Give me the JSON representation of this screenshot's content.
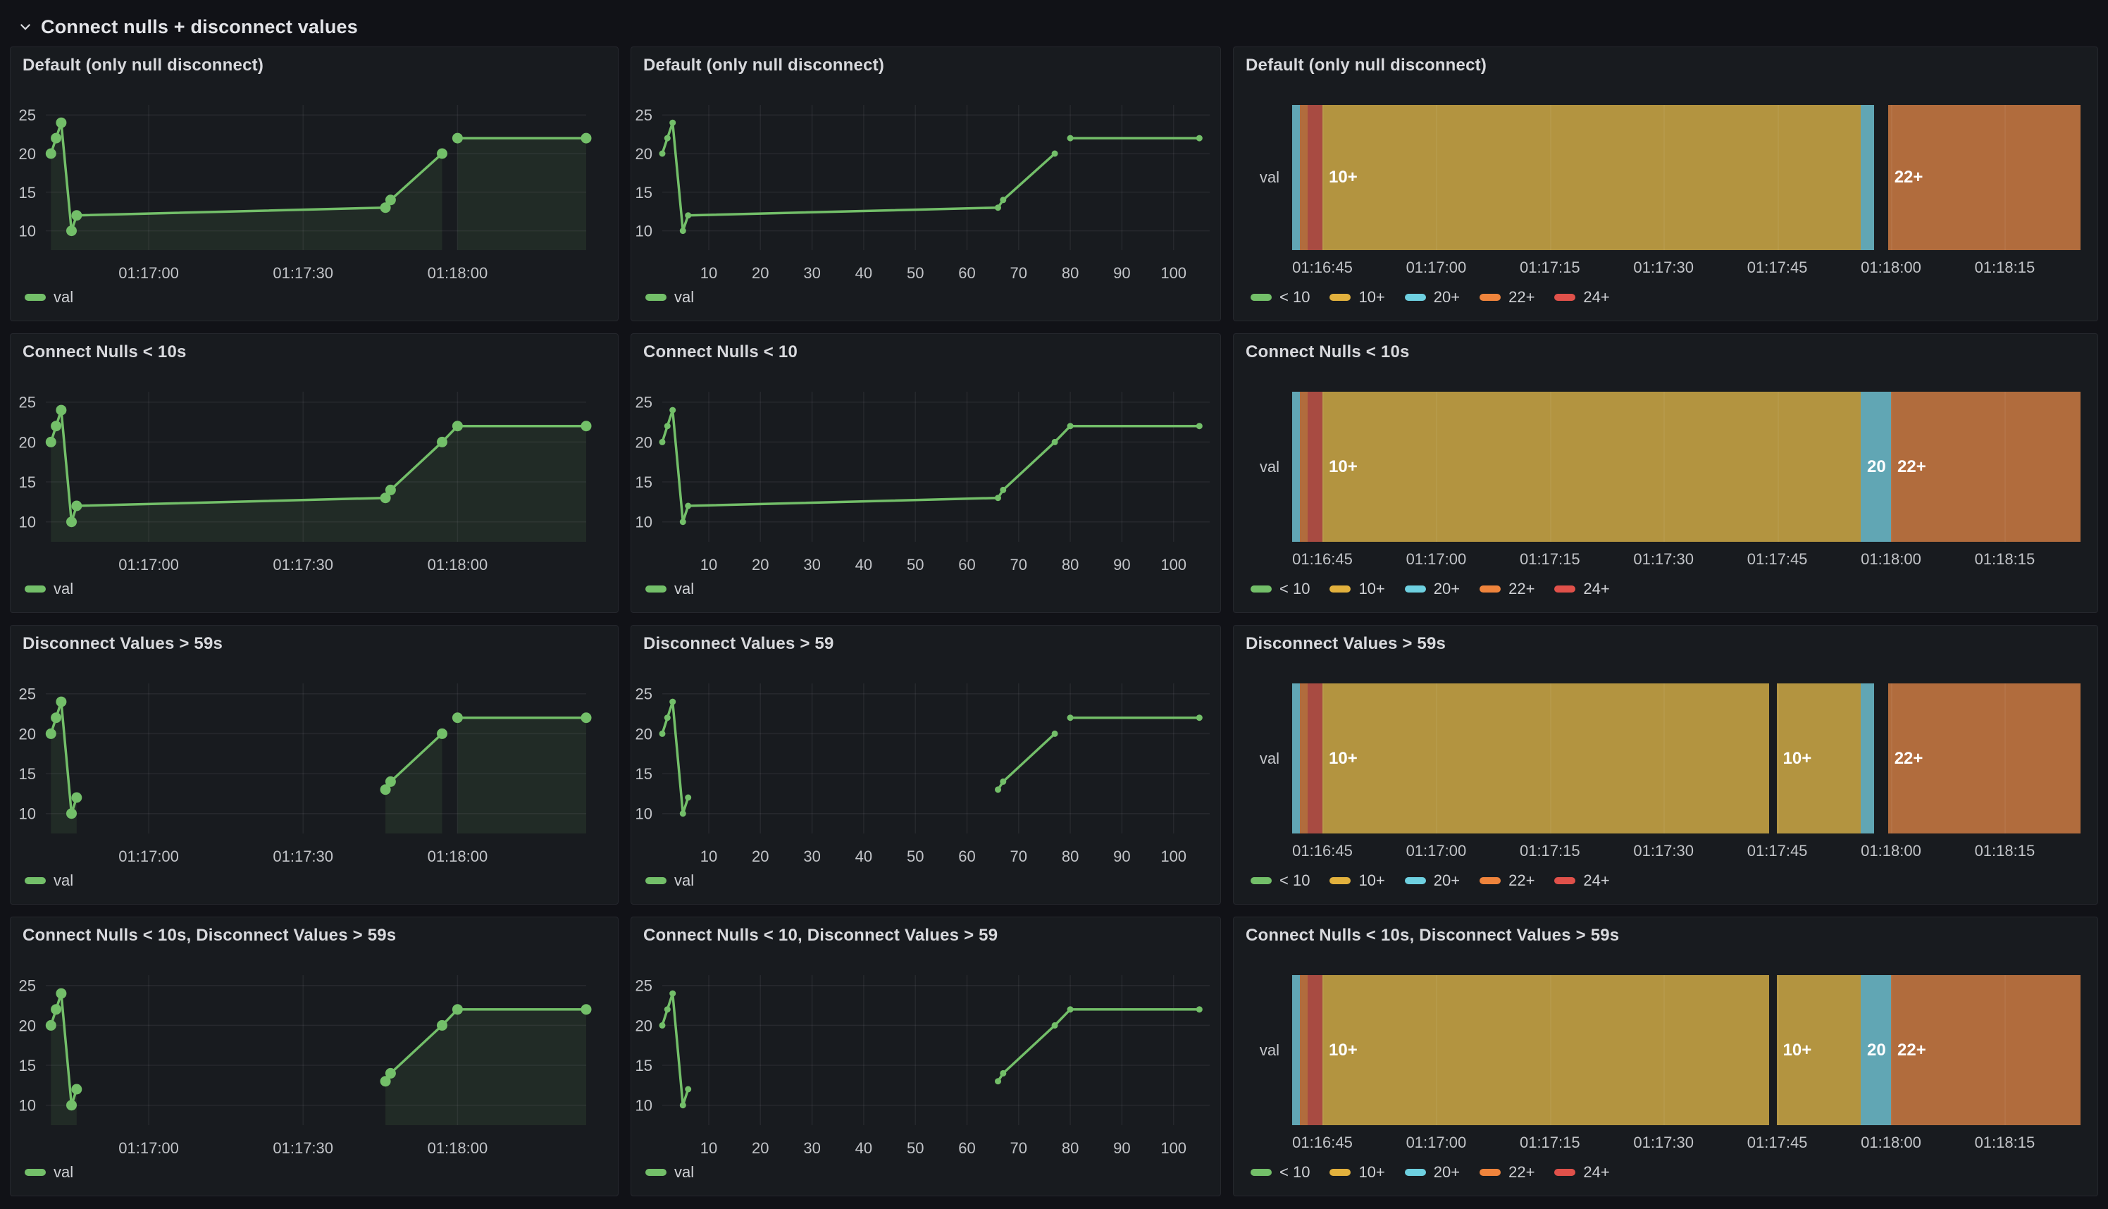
{
  "row_header": {
    "title": "Connect nulls + disconnect values"
  },
  "colors": {
    "page_bg": "#111217",
    "panel_bg": "#181b1f",
    "panel_border": "#25272d",
    "title_text": "#d8d9dd",
    "tick_text": "#c2c4c8",
    "grid_line": "rgba(204,204,220,0.08)",
    "series_line": "#73bf69",
    "series_fill": "rgba(115,191,105,0.10)",
    "value_label": "#ffffff",
    "state_fill": {
      "green": "#6d9c63",
      "yellow": "#b39440",
      "cyan": "#61a6b4",
      "orange": "#b16c3d",
      "red": "#a84b42"
    },
    "state_legend": {
      "green": "#73bf69",
      "yellow": "#e2b13d",
      "cyan": "#6ed0e0",
      "orange": "#ef843c",
      "red": "#e0514a"
    }
  },
  "series": {
    "label": "val"
  },
  "timeline_row_label": "val",
  "timeline_legend": [
    {
      "label": "< 10",
      "key": "green"
    },
    {
      "label": "10+",
      "key": "yellow"
    },
    {
      "label": "20+",
      "key": "cyan"
    },
    {
      "label": "22+",
      "key": "orange"
    },
    {
      "label": "24+",
      "key": "red"
    }
  ],
  "axes": {
    "y": {
      "domain": [
        7.5,
        26.3
      ],
      "ticks": [
        {
          "v": 10,
          "label": "10"
        },
        {
          "v": 15,
          "label": "15"
        },
        {
          "v": 20,
          "label": "20"
        },
        {
          "v": 25,
          "label": "25"
        }
      ]
    },
    "time": {
      "domain": [
        0,
        105
      ],
      "ticks": [
        {
          "v": 20,
          "label": "01:17:00"
        },
        {
          "v": 50,
          "label": "01:17:30"
        },
        {
          "v": 80,
          "label": "01:18:00"
        }
      ]
    },
    "num": {
      "domain": [
        1,
        107
      ],
      "ticks": [
        {
          "v": 10,
          "label": "10"
        },
        {
          "v": 20,
          "label": "20"
        },
        {
          "v": 30,
          "label": "30"
        },
        {
          "v": 40,
          "label": "40"
        },
        {
          "v": 50,
          "label": "50"
        },
        {
          "v": 60,
          "label": "60"
        },
        {
          "v": 70,
          "label": "70"
        },
        {
          "v": 80,
          "label": "80"
        },
        {
          "v": 90,
          "label": "90"
        },
        {
          "v": 100,
          "label": "100"
        }
      ]
    },
    "timeline": {
      "domain": [
        1,
        105
      ],
      "ticks": [
        {
          "v": 5,
          "label": "01:16:45"
        },
        {
          "v": 20,
          "label": "01:17:00"
        },
        {
          "v": 35,
          "label": "01:17:15"
        },
        {
          "v": 50,
          "label": "01:17:30"
        },
        {
          "v": 65,
          "label": "01:17:45"
        },
        {
          "v": 80,
          "label": "01:18:00"
        },
        {
          "v": 95,
          "label": "01:18:15"
        }
      ]
    }
  },
  "panels": [
    {
      "id": "default-time",
      "row": 1,
      "col": 1,
      "type": "timeseries",
      "axis": "time",
      "fill": true,
      "title": "Default (only null disconnect)",
      "segments": [
        [
          [
            1,
            20
          ],
          [
            2,
            22
          ],
          [
            3,
            24
          ],
          [
            5,
            10
          ],
          [
            6,
            12
          ],
          [
            66,
            13
          ],
          [
            67,
            14
          ],
          [
            77,
            20
          ]
        ],
        [
          [
            80,
            22
          ],
          [
            105,
            22
          ]
        ]
      ]
    },
    {
      "id": "default-num",
      "row": 1,
      "col": 2,
      "type": "timeseries",
      "axis": "num",
      "fill": false,
      "title": "Default (only null disconnect)",
      "segments": [
        [
          [
            1,
            20
          ],
          [
            2,
            22
          ],
          [
            3,
            24
          ],
          [
            5,
            10
          ],
          [
            6,
            12
          ],
          [
            66,
            13
          ],
          [
            67,
            14
          ],
          [
            77,
            20
          ]
        ],
        [
          [
            80,
            22
          ],
          [
            105,
            22
          ]
        ]
      ]
    },
    {
      "id": "default-timeline",
      "row": 1,
      "col": 3,
      "type": "timeline",
      "title": "Default (only null disconnect)",
      "segments": [
        {
          "from": 1,
          "to": 2,
          "key": "cyan"
        },
        {
          "from": 2,
          "to": 3,
          "key": "orange"
        },
        {
          "from": 3,
          "to": 5,
          "key": "red"
        },
        {
          "from": 5,
          "to": 76,
          "key": "yellow",
          "label": "10+"
        },
        {
          "from": 76,
          "to": 77.8,
          "key": "cyan"
        },
        {
          "from": 79.6,
          "to": 105,
          "key": "orange",
          "label": "22+"
        }
      ]
    },
    {
      "id": "connect-time",
      "row": 2,
      "col": 1,
      "type": "timeseries",
      "axis": "time",
      "fill": true,
      "title": "Connect Nulls < 10s",
      "segments": [
        [
          [
            1,
            20
          ],
          [
            2,
            22
          ],
          [
            3,
            24
          ],
          [
            5,
            10
          ],
          [
            6,
            12
          ],
          [
            66,
            13
          ],
          [
            67,
            14
          ],
          [
            77,
            20
          ],
          [
            80,
            22
          ],
          [
            105,
            22
          ]
        ]
      ]
    },
    {
      "id": "connect-num",
      "row": 2,
      "col": 2,
      "type": "timeseries",
      "axis": "num",
      "fill": false,
      "title": "Connect Nulls < 10",
      "segments": [
        [
          [
            1,
            20
          ],
          [
            2,
            22
          ],
          [
            3,
            24
          ],
          [
            5,
            10
          ],
          [
            6,
            12
          ],
          [
            66,
            13
          ],
          [
            67,
            14
          ],
          [
            77,
            20
          ],
          [
            80,
            22
          ],
          [
            105,
            22
          ]
        ]
      ]
    },
    {
      "id": "connect-timeline",
      "row": 2,
      "col": 3,
      "type": "timeline",
      "title": "Connect Nulls < 10s",
      "segments": [
        {
          "from": 1,
          "to": 2,
          "key": "cyan"
        },
        {
          "from": 2,
          "to": 3,
          "key": "orange"
        },
        {
          "from": 3,
          "to": 5,
          "key": "red"
        },
        {
          "from": 5,
          "to": 76,
          "key": "yellow",
          "label": "10+"
        },
        {
          "from": 76,
          "to": 80,
          "key": "cyan",
          "label": "20"
        },
        {
          "from": 80,
          "to": 105,
          "key": "orange",
          "label": "22+"
        }
      ]
    },
    {
      "id": "disconnect-time",
      "row": 3,
      "col": 1,
      "type": "timeseries",
      "axis": "time",
      "fill": true,
      "title": "Disconnect Values > 59s",
      "segments": [
        [
          [
            1,
            20
          ],
          [
            2,
            22
          ],
          [
            3,
            24
          ],
          [
            5,
            10
          ],
          [
            6,
            12
          ]
        ],
        [
          [
            66,
            13
          ],
          [
            67,
            14
          ],
          [
            77,
            20
          ]
        ],
        [
          [
            80,
            22
          ],
          [
            105,
            22
          ]
        ]
      ]
    },
    {
      "id": "disconnect-num",
      "row": 3,
      "col": 2,
      "type": "timeseries",
      "axis": "num",
      "fill": false,
      "title": "Disconnect Values > 59",
      "segments": [
        [
          [
            1,
            20
          ],
          [
            2,
            22
          ],
          [
            3,
            24
          ],
          [
            5,
            10
          ],
          [
            6,
            12
          ]
        ],
        [
          [
            66,
            13
          ],
          [
            67,
            14
          ],
          [
            77,
            20
          ]
        ],
        [
          [
            80,
            22
          ],
          [
            105,
            22
          ]
        ]
      ]
    },
    {
      "id": "disconnect-timeline",
      "row": 3,
      "col": 3,
      "type": "timeline",
      "title": "Disconnect Values > 59s",
      "segments": [
        {
          "from": 1,
          "to": 2,
          "key": "cyan"
        },
        {
          "from": 2,
          "to": 3,
          "key": "orange"
        },
        {
          "from": 3,
          "to": 5,
          "key": "red"
        },
        {
          "from": 5,
          "to": 63.9,
          "key": "yellow",
          "label": "10+"
        },
        {
          "from": 64.9,
          "to": 76,
          "key": "yellow",
          "label": "10+"
        },
        {
          "from": 76,
          "to": 77.8,
          "key": "cyan"
        },
        {
          "from": 79.6,
          "to": 105,
          "key": "orange",
          "label": "22+"
        }
      ]
    },
    {
      "id": "both-time",
      "row": 4,
      "col": 1,
      "type": "timeseries",
      "axis": "time",
      "fill": true,
      "title": "Connect Nulls < 10s, Disconnect Values > 59s",
      "segments": [
        [
          [
            1,
            20
          ],
          [
            2,
            22
          ],
          [
            3,
            24
          ],
          [
            5,
            10
          ],
          [
            6,
            12
          ]
        ],
        [
          [
            66,
            13
          ],
          [
            67,
            14
          ],
          [
            77,
            20
          ],
          [
            80,
            22
          ],
          [
            105,
            22
          ]
        ]
      ]
    },
    {
      "id": "both-num",
      "row": 4,
      "col": 2,
      "type": "timeseries",
      "axis": "num",
      "fill": false,
      "title": "Connect Nulls < 10, Disconnect Values > 59",
      "segments": [
        [
          [
            1,
            20
          ],
          [
            2,
            22
          ],
          [
            3,
            24
          ],
          [
            5,
            10
          ],
          [
            6,
            12
          ]
        ],
        [
          [
            66,
            13
          ],
          [
            67,
            14
          ],
          [
            77,
            20
          ],
          [
            80,
            22
          ],
          [
            105,
            22
          ]
        ]
      ]
    },
    {
      "id": "both-timeline",
      "row": 4,
      "col": 3,
      "type": "timeline",
      "title": "Connect Nulls < 10s, Disconnect Values > 59s",
      "segments": [
        {
          "from": 1,
          "to": 2,
          "key": "cyan"
        },
        {
          "from": 2,
          "to": 3,
          "key": "orange"
        },
        {
          "from": 3,
          "to": 5,
          "key": "red"
        },
        {
          "from": 5,
          "to": 63.9,
          "key": "yellow",
          "label": "10+"
        },
        {
          "from": 64.9,
          "to": 76,
          "key": "yellow",
          "label": "10+"
        },
        {
          "from": 76,
          "to": 80,
          "key": "cyan",
          "label": "20"
        },
        {
          "from": 80,
          "to": 105,
          "key": "orange",
          "label": "22+"
        }
      ]
    }
  ]
}
